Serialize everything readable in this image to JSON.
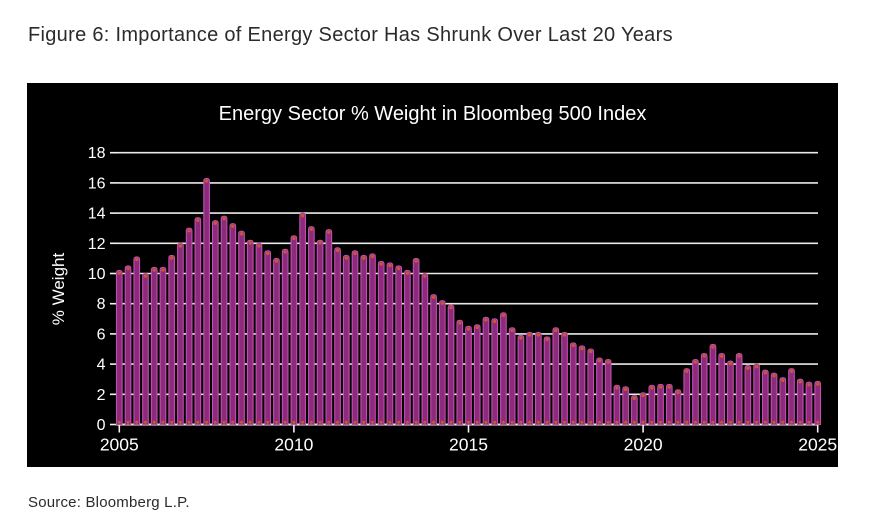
{
  "page": {
    "title": "Figure 6: Importance of Energy Sector Has Shrunk Over Last 20 Years",
    "source": "Source: Bloomberg L.P."
  },
  "chart_data": {
    "type": "bar",
    "title": "Energy Sector % Weight in Bloombeg 500 Index",
    "xlabel": "",
    "ylabel": "% Weight",
    "ylim": [
      0,
      18
    ],
    "y_ticks": [
      0,
      2,
      4,
      6,
      8,
      10,
      12,
      14,
      16,
      18
    ],
    "x_tick_labels": [
      "2005",
      "2010",
      "2015",
      "2020",
      "2025"
    ],
    "grid": true,
    "frequency": "quarterly",
    "x_start": "2005 Q1",
    "x_end": "2025 Q1",
    "values": [
      10.2,
      10.5,
      11.1,
      10.0,
      10.4,
      10.4,
      11.2,
      12.0,
      13.0,
      13.7,
      16.3,
      13.5,
      13.8,
      13.3,
      12.8,
      12.2,
      12.0,
      11.5,
      11.0,
      11.6,
      12.5,
      14.0,
      13.1,
      12.2,
      12.9,
      11.7,
      11.2,
      11.5,
      11.2,
      11.3,
      10.8,
      10.7,
      10.5,
      10.2,
      11.0,
      10.0,
      8.6,
      8.2,
      7.9,
      6.9,
      6.5,
      6.6,
      7.1,
      7.0,
      7.4,
      6.4,
      5.9,
      6.1,
      6.1,
      5.8,
      6.4,
      6.1,
      5.4,
      5.2,
      5.0,
      4.4,
      4.3,
      2.6,
      2.5,
      1.9,
      2.1,
      2.6,
      2.65,
      2.65,
      2.3,
      3.7,
      4.3,
      4.7,
      5.3,
      4.7,
      4.2,
      4.7,
      3.9,
      4.0,
      3.6,
      3.4,
      3.1,
      3.7,
      3.0,
      2.8,
      2.85
    ],
    "colors": {
      "panel_bg": "#000000",
      "bar_core": "#8c2a7c",
      "bar_edge": "#c04fae",
      "marker": "#cc5a28",
      "grid": "#e8e8e8",
      "axis": "#f2f2f2",
      "text": "#ffffff"
    }
  }
}
